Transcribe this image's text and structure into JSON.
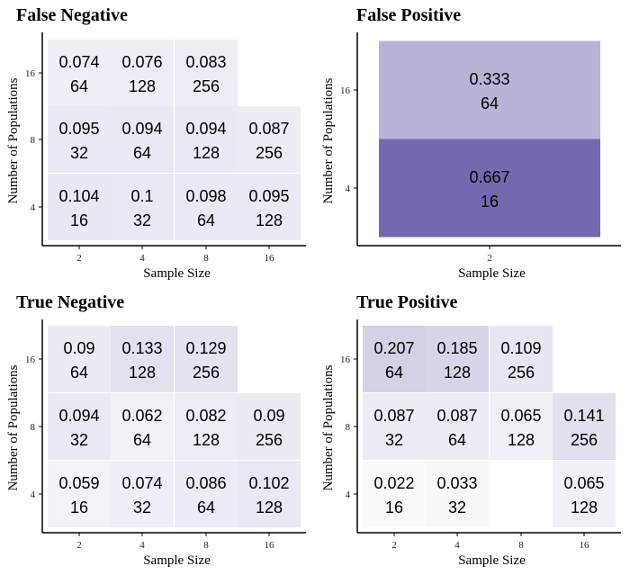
{
  "chart_data": [
    {
      "type": "heatmap",
      "title": "False Negative",
      "xlabel": "Sample Size",
      "ylabel": "Number of Populations",
      "x_categories": [
        "2",
        "4",
        "8",
        "16"
      ],
      "y_categories": [
        "4",
        "8",
        "16"
      ],
      "value_range": [
        0,
        1
      ],
      "cells": [
        {
          "x": "2",
          "y": "16",
          "value": "0.074",
          "count": "64"
        },
        {
          "x": "4",
          "y": "16",
          "value": "0.076",
          "count": "128"
        },
        {
          "x": "8",
          "y": "16",
          "value": "0.083",
          "count": "256"
        },
        {
          "x": "2",
          "y": "8",
          "value": "0.095",
          "count": "32"
        },
        {
          "x": "4",
          "y": "8",
          "value": "0.094",
          "count": "64"
        },
        {
          "x": "8",
          "y": "8",
          "value": "0.094",
          "count": "128"
        },
        {
          "x": "16",
          "y": "8",
          "value": "0.087",
          "count": "256"
        },
        {
          "x": "2",
          "y": "4",
          "value": "0.104",
          "count": "16"
        },
        {
          "x": "4",
          "y": "4",
          "value": "0.1",
          "count": "32"
        },
        {
          "x": "8",
          "y": "4",
          "value": "0.098",
          "count": "64"
        },
        {
          "x": "16",
          "y": "4",
          "value": "0.095",
          "count": "128"
        }
      ]
    },
    {
      "type": "heatmap",
      "title": "False Positive",
      "xlabel": "Sample Size",
      "ylabel": "Number of Populations",
      "x_categories": [
        "2"
      ],
      "y_categories": [
        "4",
        "16"
      ],
      "value_range": [
        0,
        1
      ],
      "cells": [
        {
          "x": "2",
          "y": "16",
          "value": "0.333",
          "count": "64"
        },
        {
          "x": "2",
          "y": "4",
          "value": "0.667",
          "count": "16"
        }
      ]
    },
    {
      "type": "heatmap",
      "title": "True Negative",
      "xlabel": "Sample Size",
      "ylabel": "Number of Populations",
      "x_categories": [
        "2",
        "4",
        "8",
        "16"
      ],
      "y_categories": [
        "4",
        "8",
        "16"
      ],
      "value_range": [
        0,
        1
      ],
      "cells": [
        {
          "x": "2",
          "y": "16",
          "value": "0.09",
          "count": "64"
        },
        {
          "x": "4",
          "y": "16",
          "value": "0.133",
          "count": "128"
        },
        {
          "x": "8",
          "y": "16",
          "value": "0.129",
          "count": "256"
        },
        {
          "x": "2",
          "y": "8",
          "value": "0.094",
          "count": "32"
        },
        {
          "x": "4",
          "y": "8",
          "value": "0.062",
          "count": "64"
        },
        {
          "x": "8",
          "y": "8",
          "value": "0.082",
          "count": "128"
        },
        {
          "x": "16",
          "y": "8",
          "value": "0.09",
          "count": "256"
        },
        {
          "x": "2",
          "y": "4",
          "value": "0.059",
          "count": "16"
        },
        {
          "x": "4",
          "y": "4",
          "value": "0.074",
          "count": "32"
        },
        {
          "x": "8",
          "y": "4",
          "value": "0.086",
          "count": "64"
        },
        {
          "x": "16",
          "y": "4",
          "value": "0.102",
          "count": "128"
        }
      ]
    },
    {
      "type": "heatmap",
      "title": "True Positive",
      "xlabel": "Sample Size",
      "ylabel": "Number of Populations",
      "x_categories": [
        "2",
        "4",
        "8",
        "16"
      ],
      "y_categories": [
        "4",
        "8",
        "16"
      ],
      "value_range": [
        0,
        1
      ],
      "cells": [
        {
          "x": "2",
          "y": "16",
          "value": "0.207",
          "count": "64"
        },
        {
          "x": "4",
          "y": "16",
          "value": "0.185",
          "count": "128"
        },
        {
          "x": "8",
          "y": "16",
          "value": "0.109",
          "count": "256"
        },
        {
          "x": "2",
          "y": "8",
          "value": "0.087",
          "count": "32"
        },
        {
          "x": "4",
          "y": "8",
          "value": "0.087",
          "count": "64"
        },
        {
          "x": "8",
          "y": "8",
          "value": "0.065",
          "count": "128"
        },
        {
          "x": "16",
          "y": "8",
          "value": "0.141",
          "count": "256"
        },
        {
          "x": "2",
          "y": "4",
          "value": "0.022",
          "count": "16"
        },
        {
          "x": "4",
          "y": "4",
          "value": "0.033",
          "count": "32"
        },
        {
          "x": "16",
          "y": "4",
          "value": "0.065",
          "count": "128"
        }
      ]
    }
  ],
  "colors": {
    "fill_low": "#ffffff",
    "fill_high": "#2f1c86",
    "text": "#000000",
    "axis": "#000000"
  }
}
